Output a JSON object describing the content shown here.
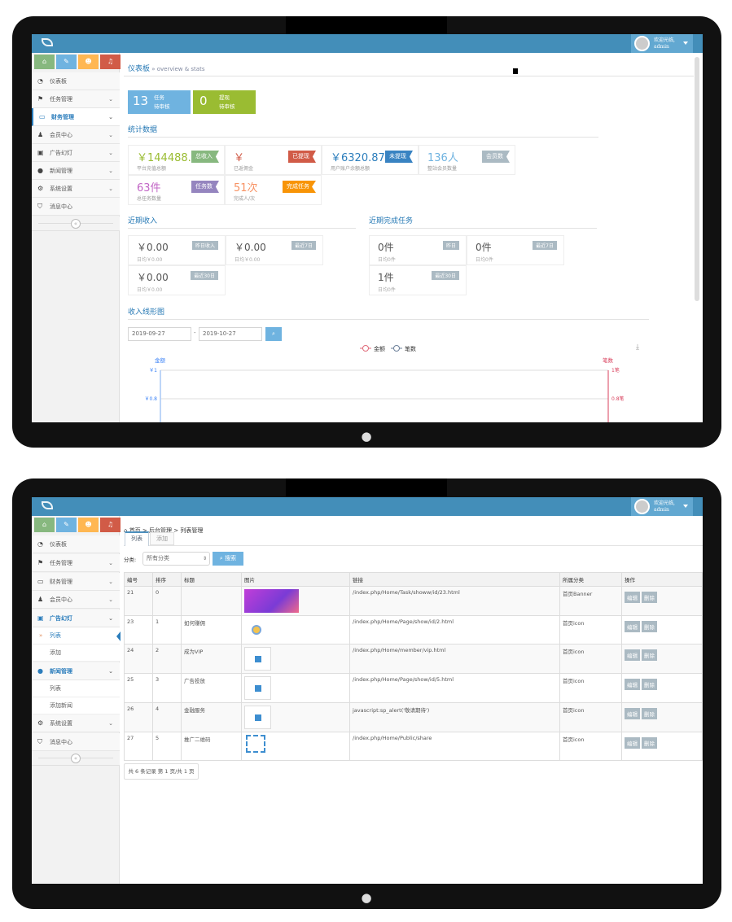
{
  "navbar": {
    "welcome": "欢迎光临,",
    "username": "admin"
  },
  "shortcuts": [
    {
      "icon": "home-icon",
      "color": "#87b87f"
    },
    {
      "icon": "pencil-icon",
      "color": "#6fb3e0"
    },
    {
      "icon": "users-icon",
      "color": "#ffb752"
    },
    {
      "icon": "bell-icon",
      "color": "#d15b47"
    }
  ],
  "dashboard": {
    "sidebar": [
      "仪表板",
      "任务管理",
      "财务管理",
      "会员中心",
      "广告幻灯",
      "新闻管理",
      "系统设置",
      "消息中心"
    ],
    "breadcrumb": {
      "title": "仪表板",
      "sub": "» overview & stats"
    },
    "infoboxes": [
      {
        "value": "13",
        "line1": "任务",
        "line2": "待审核",
        "color": "#6fb3e0"
      },
      {
        "value": "0",
        "line1": "提现",
        "line2": "待审核",
        "color": "#9abc32"
      }
    ],
    "stats_title": "统计数据",
    "stats": [
      {
        "value": "￥144488.0",
        "label": "平台充值总额",
        "tag": "总收入",
        "color": "#9abc32",
        "tagcolor": "#87b87f"
      },
      {
        "value": "￥",
        "label": "已返佣金",
        "tag": "已提现",
        "color": "#d15b47",
        "tagcolor": "#d15b47"
      },
      {
        "value": "￥6320.87",
        "label": "用户账户余额总额",
        "tag": "未提现",
        "color": "#2b7dbc",
        "tagcolor": "#3983c2"
      },
      {
        "value": "136人",
        "label": "整站会员数量",
        "tag": "会员数",
        "color": "#6fb3e0",
        "tagcolor": "#abbac3"
      },
      {
        "value": "63件",
        "label": "总任务数量",
        "tag": "任务数",
        "color": "#c266c6",
        "tagcolor": "#9585bf"
      },
      {
        "value": "51次",
        "label": "完成人/次",
        "tag": "完成任务",
        "color": "#f79263",
        "tagcolor": "#f89406"
      }
    ],
    "income_title": "近期收入",
    "income": [
      {
        "value": "￥0.00",
        "avg": "日均￥0.00",
        "tag": "昨日收入"
      },
      {
        "value": "￥0.00",
        "avg": "日均￥0.00",
        "tag": "最近7日"
      },
      {
        "value": "￥0.00",
        "avg": "日均￥0.00",
        "tag": "最近30日"
      }
    ],
    "tasks_title": "近期完成任务",
    "tasks": [
      {
        "value": "0件",
        "avg": "日均0件",
        "tag": "昨日"
      },
      {
        "value": "0件",
        "avg": "日均0件",
        "tag": "最近7日"
      },
      {
        "value": "1件",
        "avg": "日均0件",
        "tag": "最近30日"
      }
    ],
    "chart_title": "收入线形图",
    "date_from": "2019-09-27",
    "date_sep": "-",
    "date_to": "2019-10-27"
  },
  "chart_data": {
    "type": "line",
    "series": [
      {
        "name": "金额",
        "color": "#e06a7a",
        "values": []
      },
      {
        "name": "笔数",
        "color": "#6b7f99",
        "values": []
      }
    ],
    "y_left": {
      "label": "金额",
      "ticks": [
        "￥1",
        "￥0.8"
      ],
      "color": "#3b82f6"
    },
    "y_right": {
      "label": "笔数",
      "ticks": [
        "1笔",
        "0.8笔"
      ],
      "color": "#d9425e"
    },
    "grid": true,
    "legend": "top-center"
  },
  "listpage": {
    "sidebar": {
      "items": [
        "仪表板",
        "任务管理",
        "财务管理",
        "会员中心",
        "广告幻灯"
      ],
      "ad_sub": [
        "列表",
        "添加"
      ],
      "news": "新闻管理",
      "news_sub": [
        "列表",
        "添加新闻"
      ],
      "rest": [
        "系统设置",
        "消息中心"
      ]
    },
    "breadcrumb": [
      "首页",
      ">",
      "后台管理",
      ">",
      "列表管理"
    ],
    "tabs": [
      "列表",
      "添加"
    ],
    "filter_label": "分类:",
    "filter_value": "所有分类",
    "search_label": "搜索",
    "columns": [
      "编号",
      "排序",
      "标题",
      "图片",
      "链接",
      "所属分类",
      "操作"
    ],
    "rows": [
      {
        "id": "21",
        "order": "0",
        "title": "",
        "image": "banner",
        "link": "/index.php/Home/Task/showw/id/23.html",
        "cat": "首页Banner"
      },
      {
        "id": "23",
        "order": "1",
        "title": "如何赚佣",
        "image": "avatar",
        "link": "/index.php/Home/Page/show/id/2.html",
        "cat": "首页icon"
      },
      {
        "id": "24",
        "order": "2",
        "title": "成为VIP",
        "image": "broken",
        "link": "/index.php/Home/member/vip.html",
        "cat": "首页icon"
      },
      {
        "id": "25",
        "order": "3",
        "title": "广告投放",
        "image": "broken",
        "link": "/index.php/Home/Page/show/id/5.html",
        "cat": "首页icon"
      },
      {
        "id": "26",
        "order": "4",
        "title": "金融服务",
        "image": "broken",
        "link": "javascript:sp_alert('敬请期待')",
        "cat": "首页icon"
      },
      {
        "id": "27",
        "order": "5",
        "title": "推广二维码",
        "image": "scan",
        "link": "/index.php/Home/Public/share",
        "cat": "首页icon"
      }
    ],
    "edit": "编辑",
    "delete": "删除",
    "pagination": "共 6 条记录 第 1 页/共 1 页"
  }
}
